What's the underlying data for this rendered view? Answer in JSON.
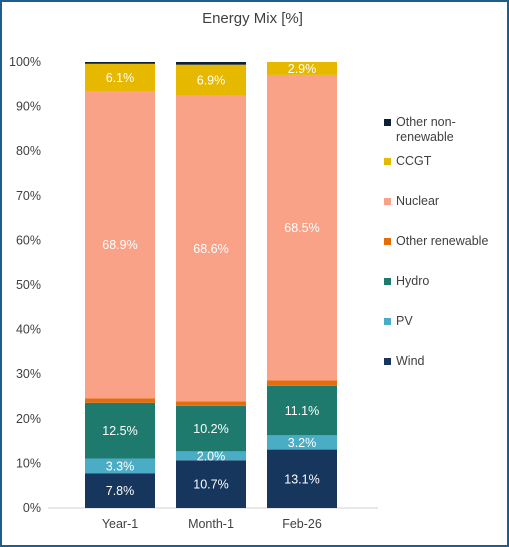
{
  "chart_data": {
    "type": "bar",
    "stacked": true,
    "title": "Energy Mix [%]",
    "xlabel": "",
    "ylabel": "",
    "ylim": [
      0,
      100
    ],
    "y_ticks": [
      "0%",
      "10%",
      "20%",
      "30%",
      "40%",
      "50%",
      "60%",
      "70%",
      "80%",
      "90%",
      "100%"
    ],
    "categories": [
      "Year-1",
      "Month-1",
      "Feb-26"
    ],
    "series": [
      {
        "name": "Wind",
        "color": "#17365d",
        "values": [
          7.8,
          10.7,
          13.1
        ],
        "labels": [
          "7.8%",
          "10.7%",
          "13.1%"
        ]
      },
      {
        "name": "PV",
        "color": "#4bacc6",
        "values": [
          3.3,
          2.0,
          3.2
        ],
        "labels": [
          "3.3%",
          "2.0%",
          "3.2%"
        ]
      },
      {
        "name": "Hydro",
        "color": "#1f7a6e",
        "values": [
          12.5,
          10.2,
          11.1
        ],
        "labels": [
          "12.5%",
          "10.2%",
          "11.1%"
        ]
      },
      {
        "name": "Other renewable",
        "color": "#e46c0a",
        "values": [
          1.0,
          1.0,
          1.2
        ],
        "labels": [
          "",
          "",
          ""
        ]
      },
      {
        "name": "Nuclear",
        "color": "#f9a287",
        "values": [
          68.9,
          68.6,
          68.5
        ],
        "labels": [
          "68.9%",
          "68.6%",
          "68.5%"
        ]
      },
      {
        "name": "CCGT",
        "color": "#e6b800",
        "values": [
          6.1,
          6.9,
          2.9
        ],
        "labels": [
          "6.1%",
          "6.9%",
          "2.9%"
        ]
      },
      {
        "name": "Other non-renewable",
        "color": "#0d1f33",
        "values": [
          0.4,
          0.6,
          0.0
        ],
        "labels": [
          "",
          "",
          ""
        ]
      }
    ],
    "legend_position": "right",
    "grid": false
  }
}
